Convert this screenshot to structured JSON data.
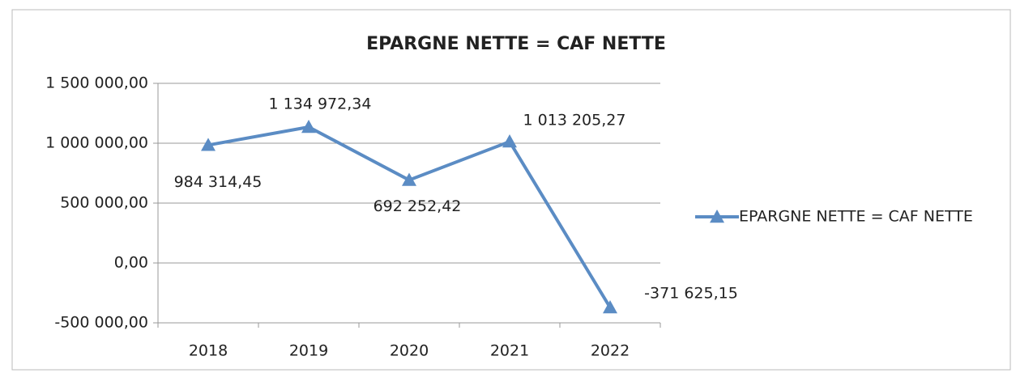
{
  "chart_data": {
    "type": "line",
    "title": "EPARGNE NETTE = CAF NETTE",
    "categories": [
      "2018",
      "2019",
      "2020",
      "2021",
      "2022"
    ],
    "series": [
      {
        "name": "EPARGNE NETTE = CAF NETTE",
        "color": "#5b8cc4",
        "values": [
          984314.45,
          1134972.34,
          692252.42,
          1013205.27,
          -371625.15
        ],
        "value_labels": [
          "984 314,45",
          "1 134 972,34",
          "692 252,42",
          "1 013 205,27",
          "-371 625,15"
        ]
      }
    ],
    "ylim": [
      -500000,
      1500000
    ],
    "yticks": [
      {
        "value": -500000,
        "label": "-500 000,00"
      },
      {
        "value": 0,
        "label": "0,00"
      },
      {
        "value": 500000,
        "label": "500 000,00"
      },
      {
        "value": 1000000,
        "label": "1 000 000,00"
      },
      {
        "value": 1500000,
        "label": "1 500 000,00"
      }
    ],
    "grid": true,
    "legend": "right"
  }
}
